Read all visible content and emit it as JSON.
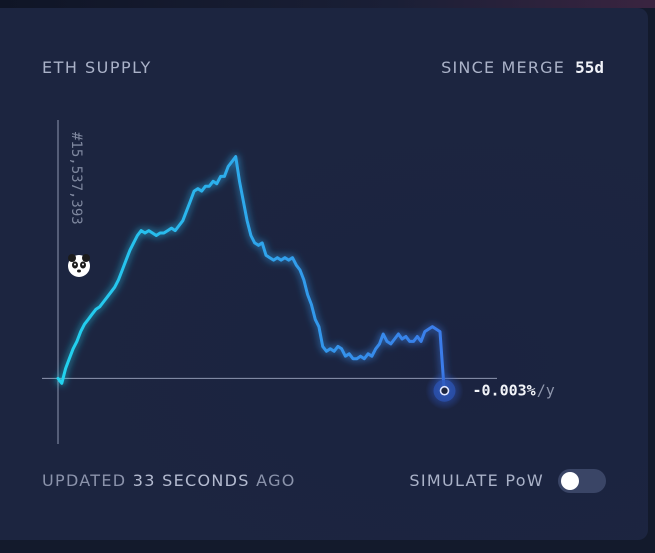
{
  "header": {
    "title": "ETH SUPPLY",
    "since_label": "SINCE MERGE",
    "since_value": "55d"
  },
  "footer": {
    "updated_prefix": "UPDATED",
    "updated_value": "33 SECONDS",
    "updated_suffix": "AGO",
    "simulate_label": "SIMULATE PoW",
    "simulate_on": false
  },
  "colors": {
    "line_start": "#22d3ee",
    "line_end": "#3b7bea",
    "axis": "#8e96b0",
    "background": "#1c2540"
  },
  "icons": {
    "marker": "panda-icon",
    "end_point": "pulse-dot-icon"
  },
  "chart_data": {
    "type": "line",
    "title": "",
    "xlabel": "",
    "ylabel": "",
    "y_marker_label": "#15,537,393",
    "end_value": "-0.003%",
    "end_unit": "/y",
    "x_range": [
      0,
      55
    ],
    "y_range": [
      -0.25,
      1.0
    ],
    "baseline": 0,
    "grid": false,
    "legend": "none",
    "series": [
      {
        "values": [
          [
            0.0,
            0.0
          ],
          [
            0.5,
            -0.02
          ],
          [
            1.0,
            0.04
          ],
          [
            1.5,
            0.08
          ],
          [
            2.0,
            0.12
          ],
          [
            2.5,
            0.15
          ],
          [
            3.0,
            0.19
          ],
          [
            3.5,
            0.22
          ],
          [
            4.0,
            0.24
          ],
          [
            4.5,
            0.26
          ],
          [
            5.0,
            0.28
          ],
          [
            5.5,
            0.29
          ],
          [
            6.0,
            0.31
          ],
          [
            6.5,
            0.33
          ],
          [
            7.0,
            0.35
          ],
          [
            7.5,
            0.37
          ],
          [
            8.0,
            0.4
          ],
          [
            8.5,
            0.44
          ],
          [
            9.0,
            0.48
          ],
          [
            9.5,
            0.52
          ],
          [
            10.0,
            0.55
          ],
          [
            10.5,
            0.58
          ],
          [
            11.0,
            0.6
          ],
          [
            11.5,
            0.59
          ],
          [
            12.0,
            0.6
          ],
          [
            12.5,
            0.59
          ],
          [
            13.0,
            0.58
          ],
          [
            13.5,
            0.59
          ],
          [
            14.0,
            0.59
          ],
          [
            14.5,
            0.6
          ],
          [
            15.0,
            0.61
          ],
          [
            15.5,
            0.6
          ],
          [
            16.0,
            0.62
          ],
          [
            16.5,
            0.64
          ],
          [
            17.0,
            0.68
          ],
          [
            17.5,
            0.72
          ],
          [
            18.0,
            0.76
          ],
          [
            18.5,
            0.77
          ],
          [
            19.0,
            0.76
          ],
          [
            19.5,
            0.78
          ],
          [
            20.0,
            0.78
          ],
          [
            20.5,
            0.8
          ],
          [
            21.0,
            0.79
          ],
          [
            21.5,
            0.82
          ],
          [
            22.0,
            0.82
          ],
          [
            22.5,
            0.86
          ],
          [
            23.0,
            0.88
          ],
          [
            23.5,
            0.9
          ],
          [
            24.0,
            0.8
          ],
          [
            24.5,
            0.72
          ],
          [
            25.0,
            0.64
          ],
          [
            25.5,
            0.58
          ],
          [
            26.0,
            0.55
          ],
          [
            26.5,
            0.54
          ],
          [
            27.0,
            0.55
          ],
          [
            27.5,
            0.5
          ],
          [
            28.0,
            0.49
          ],
          [
            28.5,
            0.48
          ],
          [
            29.0,
            0.49
          ],
          [
            29.5,
            0.48
          ],
          [
            30.0,
            0.49
          ],
          [
            30.5,
            0.48
          ],
          [
            31.0,
            0.49
          ],
          [
            31.5,
            0.46
          ],
          [
            32.0,
            0.44
          ],
          [
            32.5,
            0.4
          ],
          [
            33.0,
            0.34
          ],
          [
            33.5,
            0.3
          ],
          [
            34.0,
            0.24
          ],
          [
            34.5,
            0.21
          ],
          [
            35.0,
            0.13
          ],
          [
            35.5,
            0.11
          ],
          [
            36.0,
            0.12
          ],
          [
            36.5,
            0.11
          ],
          [
            37.0,
            0.13
          ],
          [
            37.5,
            0.12
          ],
          [
            38.0,
            0.09
          ],
          [
            38.5,
            0.1
          ],
          [
            39.0,
            0.08
          ],
          [
            39.5,
            0.08
          ],
          [
            40.0,
            0.09
          ],
          [
            40.5,
            0.08
          ],
          [
            41.0,
            0.1
          ],
          [
            41.5,
            0.09
          ],
          [
            42.0,
            0.12
          ],
          [
            42.5,
            0.14
          ],
          [
            43.0,
            0.18
          ],
          [
            43.5,
            0.15
          ],
          [
            44.0,
            0.14
          ],
          [
            44.5,
            0.16
          ],
          [
            45.0,
            0.18
          ],
          [
            45.5,
            0.16
          ],
          [
            46.0,
            0.17
          ],
          [
            46.5,
            0.15
          ],
          [
            47.0,
            0.15
          ],
          [
            47.5,
            0.17
          ],
          [
            48.0,
            0.15
          ],
          [
            48.5,
            0.19
          ],
          [
            49.0,
            0.2
          ],
          [
            49.5,
            0.21
          ],
          [
            50.0,
            0.2
          ],
          [
            50.5,
            0.19
          ],
          [
            51.0,
            -0.02
          ],
          [
            51.1,
            -0.05
          ]
        ]
      }
    ]
  }
}
